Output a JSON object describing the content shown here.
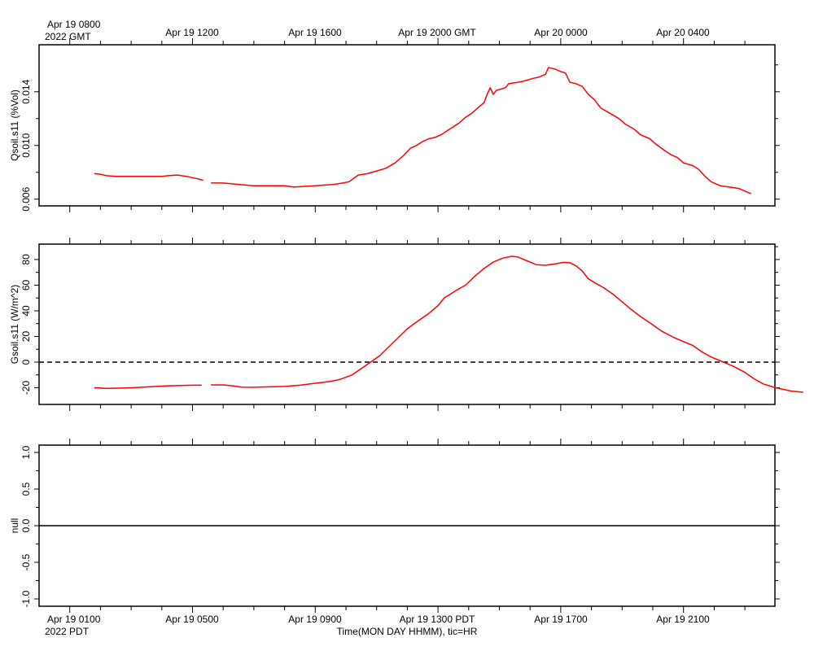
{
  "top_axis": {
    "first_label_line1": "Apr 19 0800",
    "first_label_line2": "2022 GMT",
    "labels": [
      "Apr 19 1200",
      "Apr 19 1600",
      "Apr 19 2000 GMT",
      "Apr 20 0000",
      "Apr 20 0400"
    ]
  },
  "bottom_axis": {
    "first_label_line1": "Apr 19 0100",
    "first_label_line2": "2022 PDT",
    "labels": [
      "Apr 19 0500",
      "Apr 19 0900",
      "Apr 19 1300 PDT",
      "Apr 19 1700",
      "Apr 19 2100"
    ],
    "title": "Time(MON DAY HHMM), tic=HR"
  },
  "colors": {
    "series": "#ff0000",
    "axis": "#000000"
  },
  "chart_data": [
    {
      "type": "line",
      "ylabel": "Qsoil.s11 (%Vol)",
      "x_unit": "hours since Apr 19 0000 PDT",
      "xlim": [
        0,
        24
      ],
      "ylim": [
        0.0055,
        0.0175
      ],
      "yticks": [
        "0.006",
        "0.010",
        "0.014"
      ],
      "ytick_values": [
        0.006,
        0.01,
        0.014
      ],
      "series": [
        {
          "segments": [
            [
              [
                1.8,
                0.0079
              ],
              [
                2.0,
                0.00785
              ],
              [
                2.2,
                0.00775
              ],
              [
                2.5,
                0.0077
              ],
              [
                3.0,
                0.0077
              ],
              [
                3.5,
                0.0077
              ],
              [
                4.0,
                0.0077
              ],
              [
                4.2,
                0.00775
              ],
              [
                4.5,
                0.0078
              ],
              [
                4.8,
                0.0077
              ],
              [
                5.0,
                0.0076
              ],
              [
                5.2,
                0.0075
              ],
              [
                5.35,
                0.0074
              ]
            ],
            [
              [
                5.6,
                0.0072
              ],
              [
                6.0,
                0.0072
              ],
              [
                6.5,
                0.0071
              ],
              [
                7.0,
                0.007
              ],
              [
                7.5,
                0.007
              ],
              [
                8.0,
                0.007
              ],
              [
                8.3,
                0.0069
              ],
              [
                8.6,
                0.00695
              ],
              [
                9.0,
                0.007
              ],
              [
                9.3,
                0.00705
              ],
              [
                9.6,
                0.0071
              ],
              [
                9.9,
                0.0072
              ],
              [
                10.1,
                0.0073
              ],
              [
                10.4,
                0.0078
              ],
              [
                10.7,
                0.0079
              ],
              [
                11.0,
                0.0081
              ],
              [
                11.3,
                0.0083
              ],
              [
                11.6,
                0.0087
              ],
              [
                11.9,
                0.0093
              ],
              [
                12.1,
                0.0098
              ],
              [
                12.3,
                0.01
              ],
              [
                12.5,
                0.0103
              ],
              [
                12.7,
                0.0105
              ],
              [
                12.9,
                0.0106
              ],
              [
                13.1,
                0.0108
              ],
              [
                13.3,
                0.0111
              ],
              [
                13.5,
                0.0114
              ],
              [
                13.7,
                0.0117
              ],
              [
                13.9,
                0.0121
              ],
              [
                14.1,
                0.0124
              ],
              [
                14.3,
                0.0128
              ],
              [
                14.5,
                0.0132
              ],
              [
                14.6,
                0.0138
              ],
              [
                14.7,
                0.0143
              ],
              [
                14.8,
                0.0138
              ],
              [
                14.9,
                0.0141
              ],
              [
                15.2,
                0.0143
              ],
              [
                15.3,
                0.0146
              ],
              [
                15.6,
                0.0147
              ],
              [
                15.8,
                0.0148
              ],
              [
                16.1,
                0.015
              ],
              [
                16.3,
                0.0151
              ],
              [
                16.5,
                0.0153
              ],
              [
                16.6,
                0.0158
              ],
              [
                16.8,
                0.0157
              ],
              [
                17.0,
                0.0155
              ],
              [
                17.15,
                0.0154
              ],
              [
                17.3,
                0.0147
              ],
              [
                17.5,
                0.0146
              ],
              [
                17.7,
                0.0144
              ],
              [
                17.9,
                0.0138
              ],
              [
                18.1,
                0.0134
              ],
              [
                18.3,
                0.0128
              ],
              [
                18.6,
                0.0124
              ],
              [
                18.9,
                0.012
              ],
              [
                19.1,
                0.0116
              ],
              [
                19.4,
                0.0112
              ],
              [
                19.6,
                0.0108
              ],
              [
                19.9,
                0.0105
              ],
              [
                20.1,
                0.0101
              ],
              [
                20.4,
                0.0096
              ],
              [
                20.6,
                0.0093
              ],
              [
                20.8,
                0.0091
              ],
              [
                21.0,
                0.0087
              ],
              [
                21.3,
                0.0085
              ],
              [
                21.5,
                0.0082
              ],
              [
                21.7,
                0.0077
              ],
              [
                21.9,
                0.0073
              ],
              [
                22.2,
                0.007
              ],
              [
                22.5,
                0.0069
              ],
              [
                22.8,
                0.0068
              ],
              [
                23.0,
                0.0066
              ],
              [
                23.2,
                0.0064
              ]
            ]
          ]
        }
      ]
    },
    {
      "type": "line",
      "ylabel": "Gsoil.s11 (W/m^2)",
      "x_unit": "hours since Apr 19 0000 PDT",
      "xlim": [
        0,
        24
      ],
      "ylim": [
        -33,
        92
      ],
      "yticks": [
        "-20",
        "0",
        "20",
        "40",
        "60",
        "80"
      ],
      "ytick_values": [
        -20,
        0,
        20,
        40,
        60,
        80
      ],
      "zero_line": 0,
      "series": [
        {
          "segments": [
            [
              [
                1.8,
                -20.0
              ],
              [
                2.2,
                -20.5
              ],
              [
                2.6,
                -20.3
              ],
              [
                3.0,
                -20.0
              ],
              [
                3.4,
                -19.5
              ],
              [
                3.8,
                -19.0
              ],
              [
                4.2,
                -18.5
              ],
              [
                4.6,
                -18.2
              ],
              [
                5.0,
                -18.0
              ],
              [
                5.3,
                -18.0
              ]
            ],
            [
              [
                5.6,
                -17.8
              ],
              [
                6.0,
                -17.8
              ],
              [
                6.3,
                -18.5
              ],
              [
                6.6,
                -19.5
              ],
              [
                7.0,
                -19.6
              ],
              [
                7.5,
                -19.3
              ],
              [
                8.0,
                -19.0
              ],
              [
                8.5,
                -18.0
              ],
              [
                9.0,
                -16.5
              ],
              [
                9.5,
                -15.0
              ],
              [
                9.8,
                -13.5
              ],
              [
                10.2,
                -10.0
              ],
              [
                10.5,
                -5.0
              ],
              [
                10.8,
                0.0
              ],
              [
                11.1,
                5.0
              ],
              [
                11.4,
                12.0
              ],
              [
                11.7,
                19.0
              ],
              [
                12.0,
                26.0
              ],
              [
                12.4,
                33.0
              ],
              [
                12.7,
                38.0
              ],
              [
                13.0,
                44.0
              ],
              [
                13.2,
                50.0
              ],
              [
                13.4,
                53.0
              ],
              [
                13.6,
                56.0
              ],
              [
                13.9,
                60.0
              ],
              [
                14.2,
                67.0
              ],
              [
                14.5,
                73.0
              ],
              [
                14.8,
                78.0
              ],
              [
                15.1,
                81.0
              ],
              [
                15.4,
                82.5
              ],
              [
                15.6,
                82.0
              ],
              [
                15.9,
                79.0
              ],
              [
                16.2,
                76.0
              ],
              [
                16.5,
                75.5
              ],
              [
                16.8,
                76.5
              ],
              [
                17.1,
                77.8
              ],
              [
                17.3,
                77.5
              ],
              [
                17.5,
                75.0
              ],
              [
                17.7,
                71.0
              ],
              [
                17.9,
                65.0
              ],
              [
                18.1,
                62.0
              ],
              [
                18.4,
                58.0
              ],
              [
                18.7,
                53.0
              ],
              [
                19.0,
                47.0
              ],
              [
                19.3,
                41.0
              ],
              [
                19.6,
                35.5
              ],
              [
                20.0,
                29.0
              ],
              [
                20.3,
                24.0
              ],
              [
                20.7,
                19.0
              ],
              [
                21.0,
                16.0
              ],
              [
                21.3,
                13.0
              ],
              [
                21.6,
                8.0
              ],
              [
                21.9,
                4.0
              ],
              [
                22.3,
                0.0
              ],
              [
                22.6,
                -3.0
              ],
              [
                23.0,
                -8.0
              ],
              [
                23.3,
                -13.0
              ],
              [
                23.6,
                -17.0
              ],
              [
                24.0,
                -20.0
              ],
              [
                24.5,
                -22.5
              ],
              [
                24.9,
                -23.5
              ]
            ]
          ]
        }
      ]
    },
    {
      "type": "line",
      "ylabel": "null",
      "x_unit": "hours since Apr 19 0000 PDT",
      "xlim": [
        0,
        24
      ],
      "ylim": [
        -1.1,
        1.1
      ],
      "yticks": [
        "-1.0",
        "-0.5",
        "0.0",
        "0.5",
        "1.0"
      ],
      "ytick_values": [
        -1.0,
        -0.5,
        0.0,
        0.5,
        1.0
      ],
      "series": [
        {
          "segments": [
            [
              [
                0,
                0
              ],
              [
                24,
                0
              ]
            ]
          ]
        }
      ]
    }
  ]
}
